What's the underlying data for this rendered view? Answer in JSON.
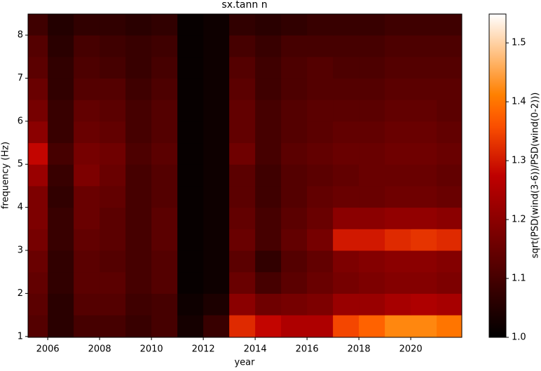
{
  "chart_data": {
    "type": "heatmap",
    "title": "sx.tann n",
    "xlabel": "year",
    "ylabel": "frequency (Hz)",
    "colorbar_label": "sqrt(PSD(wind(3-6))/PSD(wind(0-2)))",
    "cmap": "gist_heat",
    "xbins": [
      2005.24,
      2006,
      2007,
      2008,
      2009,
      2010,
      2011,
      2012,
      2013,
      2014,
      2015,
      2016,
      2017,
      2018,
      2019,
      2020,
      2021,
      2021.97
    ],
    "ybins": [
      0.98,
      1.5,
      2,
      2.5,
      3,
      3.5,
      4,
      4.5,
      5,
      5.5,
      6,
      6.5,
      7,
      7.5,
      8,
      8.49
    ],
    "values": [
      [
        1.12,
        1.06,
        1.1,
        1.1,
        1.08,
        1.1,
        1.03,
        1.08,
        1.32,
        1.28,
        1.25,
        1.25,
        1.35,
        1.38,
        1.42,
        1.42,
        1.4
      ],
      [
        1.13,
        1.06,
        1.12,
        1.12,
        1.09,
        1.1,
        1.02,
        1.04,
        1.2,
        1.16,
        1.17,
        1.18,
        1.22,
        1.22,
        1.24,
        1.25,
        1.24
      ],
      [
        1.14,
        1.07,
        1.13,
        1.13,
        1.1,
        1.12,
        1.01,
        1.02,
        1.15,
        1.1,
        1.13,
        1.15,
        1.17,
        1.18,
        1.19,
        1.19,
        1.18
      ],
      [
        1.15,
        1.07,
        1.13,
        1.12,
        1.1,
        1.12,
        1.01,
        1.02,
        1.13,
        1.07,
        1.12,
        1.14,
        1.18,
        1.19,
        1.2,
        1.2,
        1.19
      ],
      [
        1.17,
        1.08,
        1.14,
        1.13,
        1.1,
        1.13,
        1.01,
        1.02,
        1.15,
        1.1,
        1.14,
        1.17,
        1.3,
        1.3,
        1.32,
        1.33,
        1.32
      ],
      [
        1.18,
        1.08,
        1.15,
        1.13,
        1.1,
        1.13,
        1.01,
        1.02,
        1.14,
        1.1,
        1.13,
        1.15,
        1.2,
        1.2,
        1.21,
        1.21,
        1.2
      ],
      [
        1.18,
        1.07,
        1.15,
        1.14,
        1.1,
        1.12,
        1.01,
        1.02,
        1.13,
        1.09,
        1.12,
        1.14,
        1.15,
        1.15,
        1.16,
        1.16,
        1.15
      ],
      [
        1.22,
        1.08,
        1.18,
        1.15,
        1.1,
        1.12,
        1.01,
        1.02,
        1.13,
        1.09,
        1.12,
        1.13,
        1.14,
        1.15,
        1.15,
        1.15,
        1.14
      ],
      [
        1.28,
        1.1,
        1.17,
        1.16,
        1.11,
        1.13,
        1.01,
        1.02,
        1.16,
        1.1,
        1.13,
        1.14,
        1.15,
        1.15,
        1.16,
        1.16,
        1.15
      ],
      [
        1.2,
        1.08,
        1.15,
        1.14,
        1.1,
        1.12,
        1.01,
        1.02,
        1.14,
        1.1,
        1.12,
        1.13,
        1.14,
        1.14,
        1.15,
        1.15,
        1.14
      ],
      [
        1.17,
        1.08,
        1.14,
        1.13,
        1.1,
        1.12,
        1.01,
        1.02,
        1.14,
        1.1,
        1.12,
        1.13,
        1.13,
        1.13,
        1.14,
        1.14,
        1.13
      ],
      [
        1.15,
        1.07,
        1.12,
        1.12,
        1.09,
        1.11,
        1.01,
        1.02,
        1.13,
        1.09,
        1.11,
        1.12,
        1.12,
        1.12,
        1.13,
        1.13,
        1.13
      ],
      [
        1.13,
        1.07,
        1.11,
        1.1,
        1.08,
        1.1,
        1.01,
        1.02,
        1.12,
        1.09,
        1.11,
        1.12,
        1.11,
        1.11,
        1.12,
        1.12,
        1.12
      ],
      [
        1.12,
        1.06,
        1.1,
        1.09,
        1.08,
        1.09,
        1.01,
        1.02,
        1.1,
        1.08,
        1.1,
        1.1,
        1.1,
        1.1,
        1.11,
        1.11,
        1.11
      ],
      [
        1.09,
        1.05,
        1.07,
        1.07,
        1.06,
        1.07,
        1.01,
        1.02,
        1.07,
        1.06,
        1.07,
        1.08,
        1.08,
        1.08,
        1.09,
        1.09,
        1.09
      ]
    ],
    "xlim": [
      2005.24,
      2021.97
    ],
    "ylim": [
      0.98,
      8.49
    ],
    "xticks": [
      2006,
      2008,
      2010,
      2012,
      2014,
      2016,
      2018,
      2020
    ],
    "yticks": [
      1,
      2,
      3,
      4,
      5,
      6,
      7,
      8
    ],
    "clim": [
      1,
      1.549
    ],
    "cticks": [
      {
        "value": 1,
        "label": "1.0"
      },
      1.1,
      1.2,
      1.3,
      1.4,
      1.5
    ]
  }
}
